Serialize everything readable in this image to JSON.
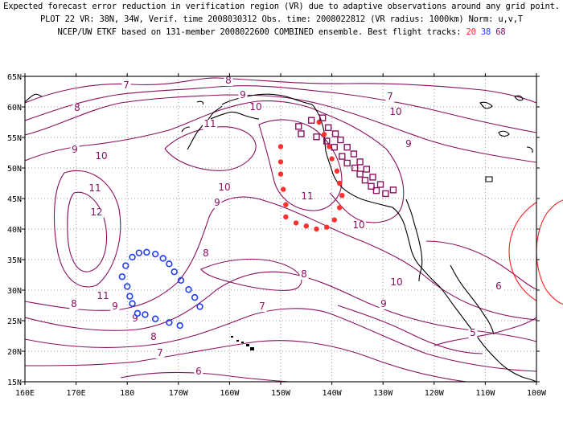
{
  "header": {
    "line1": "Expected forecast error reduction in verification region (VR) due to adaptive observations around any grid point.",
    "line2": "PLOT 22 VR: 38N, 34W, Verif. time 2008030312 Obs. time: 2008022812 (VR radius: 1000km) Norm: u,v,T",
    "line3": "NCEP/UW ETKF based on 131-member 2008022600 COMBINED ensemble.  Best flight tracks: ",
    "track_20": "20",
    "track_38": "38",
    "track_68": "68"
  },
  "axes": {
    "y_labels": [
      "65N",
      "60N",
      "55N",
      "50N",
      "45N",
      "40N",
      "35N",
      "30N",
      "25N",
      "20N",
      "15N"
    ],
    "x_labels": [
      "160E",
      "170E",
      "180",
      "170W",
      "160W",
      "150W",
      "140W",
      "130W",
      "120W",
      "110W",
      "100W"
    ]
  },
  "contour_labels": [
    {
      "text": "7"
    },
    {
      "text": "8"
    },
    {
      "text": "9"
    },
    {
      "text": "10"
    },
    {
      "text": "11"
    },
    {
      "text": "10"
    },
    {
      "text": "11"
    },
    {
      "text": "12"
    },
    {
      "text": "11"
    },
    {
      "text": "9"
    },
    {
      "text": "8"
    },
    {
      "text": "7"
    },
    {
      "text": "6"
    },
    {
      "text": "8"
    },
    {
      "text": "7"
    },
    {
      "text": "10"
    },
    {
      "text": "9"
    },
    {
      "text": "9"
    },
    {
      "text": "8"
    },
    {
      "text": "10"
    },
    {
      "text": "11"
    },
    {
      "text": "9"
    },
    {
      "text": "10"
    },
    {
      "text": "10"
    },
    {
      "text": "9"
    },
    {
      "text": "8"
    },
    {
      "text": "7"
    },
    {
      "text": "8"
    },
    {
      "text": "9"
    },
    {
      "text": "6"
    },
    {
      "text": "5"
    }
  ],
  "colors": {
    "contour": "#8a1060",
    "track20": "#ff3030",
    "track38": "#1f3dff",
    "track68": "#8a1060",
    "vr_circle": "#ff2020",
    "coast": "#000000",
    "grid": "#9a9a9a"
  },
  "flight_tracks": {
    "track_20_red": [
      [
        -150,
        53.5
      ],
      [
        -150,
        51
      ],
      [
        -150,
        49
      ],
      [
        -149.5,
        46.5
      ],
      [
        -149,
        44
      ],
      [
        -149,
        42
      ],
      [
        -147,
        41
      ],
      [
        -145,
        40.5
      ],
      [
        -143,
        40
      ],
      [
        -141,
        40.3
      ],
      [
        -139.5,
        41.5
      ],
      [
        -138.5,
        43.5
      ],
      [
        -138,
        45.5
      ],
      [
        -138.5,
        47.5
      ],
      [
        -139,
        49.5
      ],
      [
        -140,
        51.5
      ],
      [
        -140.5,
        53.5
      ],
      [
        -141.5,
        55.5
      ],
      [
        -142.5,
        57.5
      ]
    ],
    "track_38_blue": [
      [
        -178,
        26.2
      ],
      [
        -179,
        27.8
      ],
      [
        -179.5,
        29
      ],
      [
        -180,
        30.6
      ],
      [
        -181,
        32.2
      ],
      [
        -180.3,
        34
      ],
      [
        -179,
        35.4
      ],
      [
        -177.7,
        36.1
      ],
      [
        -176.2,
        36.2
      ],
      [
        -174.5,
        35.9
      ],
      [
        -173,
        35.2
      ],
      [
        -171.8,
        34.3
      ],
      [
        -170.8,
        33
      ],
      [
        -169.5,
        31.6
      ],
      [
        -168,
        30.1
      ],
      [
        -166.8,
        28.8
      ],
      [
        -165.8,
        27.3
      ],
      [
        -176.5,
        26
      ],
      [
        -174.5,
        25.3
      ],
      [
        -171.8,
        24.7
      ],
      [
        -169.7,
        24.2
      ]
    ],
    "track_68_purple": [
      [
        -146.5,
        56.8
      ],
      [
        -144,
        57.8
      ],
      [
        -141.8,
        58.2
      ],
      [
        -146,
        55.6
      ],
      [
        -143,
        55.1
      ],
      [
        -141,
        54.4
      ],
      [
        -139.5,
        53.4
      ],
      [
        -138,
        51.9
      ],
      [
        -137,
        50.8
      ],
      [
        -135.5,
        50
      ],
      [
        -134.5,
        49
      ],
      [
        -133.5,
        48
      ],
      [
        -132.3,
        47
      ],
      [
        -131.3,
        46.3
      ],
      [
        -129.5,
        45.8
      ],
      [
        -128,
        46.4
      ],
      [
        -130.5,
        47.3
      ],
      [
        -132,
        48.5
      ],
      [
        -133.2,
        49.8
      ],
      [
        -134.5,
        51
      ],
      [
        -135.7,
        52.3
      ],
      [
        -137,
        53.4
      ],
      [
        -138.3,
        54.6
      ],
      [
        -139.3,
        55.6
      ],
      [
        -140.7,
        56.6
      ]
    ]
  }
}
